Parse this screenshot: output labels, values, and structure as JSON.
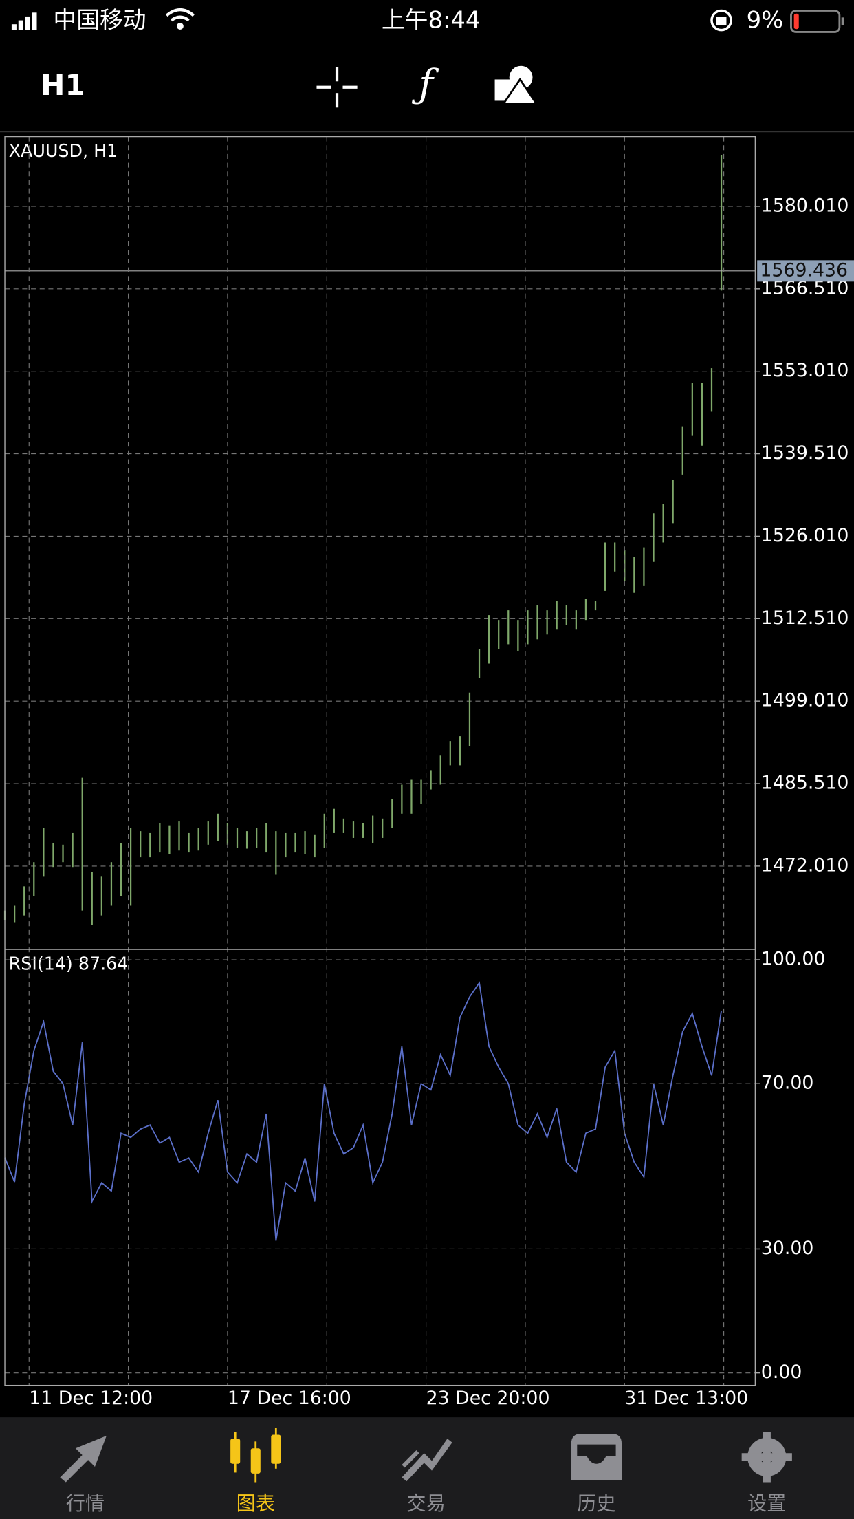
{
  "status_bar": {
    "carrier": "中国移动",
    "time": "上午8:44",
    "battery": "9%"
  },
  "toolbar": {
    "timeframe": "H1"
  },
  "chart_data": [
    {
      "type": "range",
      "title": "XAUUSD, H1",
      "color": "#7fa86a",
      "high": [
        1464.72,
        1465.52,
        1468.69,
        1472.65,
        1478.2,
        1475.83,
        1475.51,
        1477.41,
        1486.45,
        1471.07,
        1470.27,
        1472.65,
        1475.83,
        1478.2,
        1477.73,
        1477.41,
        1479.0,
        1478.68,
        1479.31,
        1477.41,
        1478.2,
        1479.31,
        1480.58,
        1479.0,
        1478.2,
        1477.73,
        1478.2,
        1479.0,
        1477.73,
        1477.41,
        1477.41,
        1477.73,
        1477.09,
        1480.58,
        1481.38,
        1479.79,
        1479.31,
        1479.0,
        1480.27,
        1479.79,
        1482.96,
        1485.34,
        1486.13,
        1486.13,
        1487.72,
        1490.1,
        1492.48,
        1493.27,
        1500.41,
        1507.54,
        1513.09,
        1512.3,
        1513.88,
        1512.3,
        1513.88,
        1514.68,
        1513.88,
        1515.47,
        1514.68,
        1513.88,
        1515.79,
        1515.47,
        1524.99,
        1524.99,
        1523.72,
        1522.61,
        1524.19,
        1529.74,
        1531.33,
        1535.29,
        1544.01,
        1551.15,
        1551.15,
        1553.53,
        1588.42
      ],
      "low": [
        1463.14,
        1462.82,
        1463.93,
        1467.1,
        1470.27,
        1471.86,
        1472.65,
        1471.86,
        1464.72,
        1462.35,
        1463.93,
        1465.52,
        1467.1,
        1465.52,
        1473.45,
        1473.45,
        1474.24,
        1473.92,
        1474.56,
        1474.24,
        1474.56,
        1475.51,
        1476.14,
        1475.51,
        1475.03,
        1474.87,
        1475.03,
        1474.24,
        1470.59,
        1473.45,
        1474.24,
        1473.92,
        1473.45,
        1475.03,
        1477.41,
        1477.41,
        1476.62,
        1476.62,
        1475.83,
        1476.62,
        1478.2,
        1480.58,
        1480.58,
        1482.17,
        1484.55,
        1485.34,
        1488.51,
        1488.51,
        1491.68,
        1502.78,
        1505.16,
        1507.54,
        1508.33,
        1507.22,
        1508.33,
        1509.13,
        1509.92,
        1510.71,
        1511.51,
        1510.71,
        1512.3,
        1513.88,
        1517.06,
        1520.23,
        1518.64,
        1516.74,
        1517.85,
        1521.81,
        1524.99,
        1528.16,
        1536.09,
        1542.43,
        1540.84,
        1546.39,
        1566.22
      ],
      "last_price": 1569.436,
      "xlim": [
        0,
        77.5
      ],
      "ylim": [
        1458.37,
        1591.43
      ],
      "yticks": [
        {
          "value": 1580.01,
          "label": "1580.010"
        },
        {
          "value": 1566.51,
          "label": "1566.510"
        },
        {
          "value": 1553.01,
          "label": "1553.010"
        },
        {
          "value": 1539.51,
          "label": "1539.510"
        },
        {
          "value": 1526.01,
          "label": "1526.010"
        },
        {
          "value": 1512.51,
          "label": "1512.510"
        },
        {
          "value": 1499.01,
          "label": "1499.010"
        },
        {
          "value": 1485.51,
          "label": "1485.510"
        },
        {
          "value": 1472.01,
          "label": "1472.010"
        }
      ],
      "grid": true
    },
    {
      "type": "line",
      "title": "RSI(14) 87.64",
      "color": "#5b6fc9",
      "values": [
        52.1,
        46.2,
        65,
        78,
        85,
        73,
        70,
        60,
        80,
        41.5,
        46,
        44,
        58,
        57,
        59,
        60,
        55.6,
        57,
        51,
        52,
        48.6,
        58,
        66,
        48.6,
        46,
        53,
        51,
        62.7,
        32,
        46,
        44,
        52,
        41.5,
        70,
        58,
        53,
        54.5,
        60,
        46,
        51,
        62.7,
        79,
        60,
        70,
        68.5,
        77,
        72,
        86,
        91,
        94.4,
        79,
        74,
        70,
        60,
        58,
        62.7,
        57,
        64,
        51,
        48.6,
        58,
        59,
        74,
        78,
        58,
        51,
        47.4,
        70,
        60,
        72,
        82.6,
        87,
        79,
        72,
        87.64
      ],
      "xlim": [
        0,
        77.5
      ],
      "ylim": [
        -3,
        102.5
      ],
      "yticks": [
        {
          "value": 100,
          "label": "100.00"
        },
        {
          "value": 70,
          "label": "70.00"
        },
        {
          "value": 30,
          "label": "30.00"
        },
        {
          "value": 0,
          "label": "0.00"
        }
      ],
      "xticks": [
        {
          "value": 2.5,
          "label": "11 Dec 12:00"
        },
        {
          "value": 23,
          "label": "17 Dec 16:00"
        },
        {
          "value": 43.5,
          "label": "23 Dec 20:00"
        },
        {
          "value": 64,
          "label": "31 Dec 13:00"
        }
      ],
      "grid": true
    }
  ],
  "tab_bar": {
    "tabs": [
      "行情",
      "图表",
      "交易",
      "历史",
      "设置"
    ],
    "active": 1
  }
}
